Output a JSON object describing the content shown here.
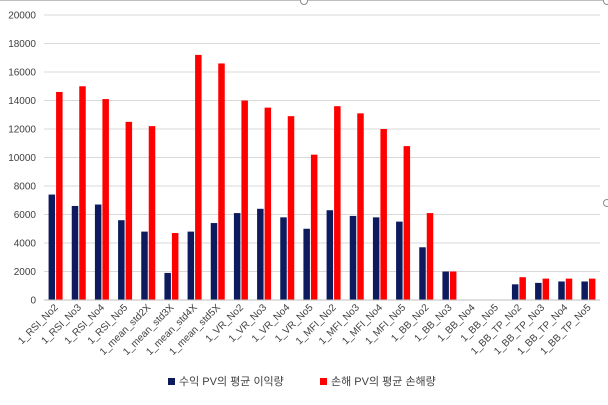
{
  "chart_data": {
    "type": "bar",
    "title": "",
    "xlabel": "",
    "ylabel": "",
    "ylim": [
      0,
      20000
    ],
    "yticks": [
      0,
      2000,
      4000,
      6000,
      8000,
      10000,
      12000,
      14000,
      16000,
      18000,
      20000
    ],
    "grid": true,
    "legend_position": "bottom",
    "categories": [
      "1_RSI_No2",
      "1_RSI_No3",
      "1_RSI_No4",
      "1_RSI_No5",
      "1_mean_std2X",
      "1_mean_std3X",
      "1_mean_std4X",
      "1_mean_std5X",
      "1_VR_No2",
      "1_VR_No3",
      "1_VR_No4",
      "1_VR_No5",
      "1_MFI_No2",
      "1_MFI_No3",
      "1_MFI_No4",
      "1_MFI_No5",
      "1_BB_No2",
      "1_BB_No3",
      "1_BB_No4",
      "1_BB_No5",
      "1_BB_TP_No2",
      "1_BB_TP_No3",
      "1_BB_TP_No4",
      "1_BB_TP_No5"
    ],
    "series": [
      {
        "name": "수익 PV의 평균 이익량",
        "color": "#0d1b5e",
        "values": [
          7400,
          6600,
          6700,
          5600,
          4800,
          1900,
          4800,
          5400,
          6100,
          6400,
          5800,
          5000,
          6300,
          5900,
          5800,
          5500,
          3700,
          2000,
          0,
          0,
          1100,
          1200,
          1300,
          1300
        ]
      },
      {
        "name": "손해 PV의 평균 손해량",
        "color": "#ff0000",
        "values": [
          14600,
          15000,
          14100,
          12500,
          12200,
          4700,
          17200,
          16600,
          14000,
          13500,
          12900,
          10200,
          13600,
          13100,
          12000,
          10800,
          6100,
          2000,
          0,
          0,
          1600,
          1500,
          1500,
          1500
        ]
      }
    ]
  }
}
